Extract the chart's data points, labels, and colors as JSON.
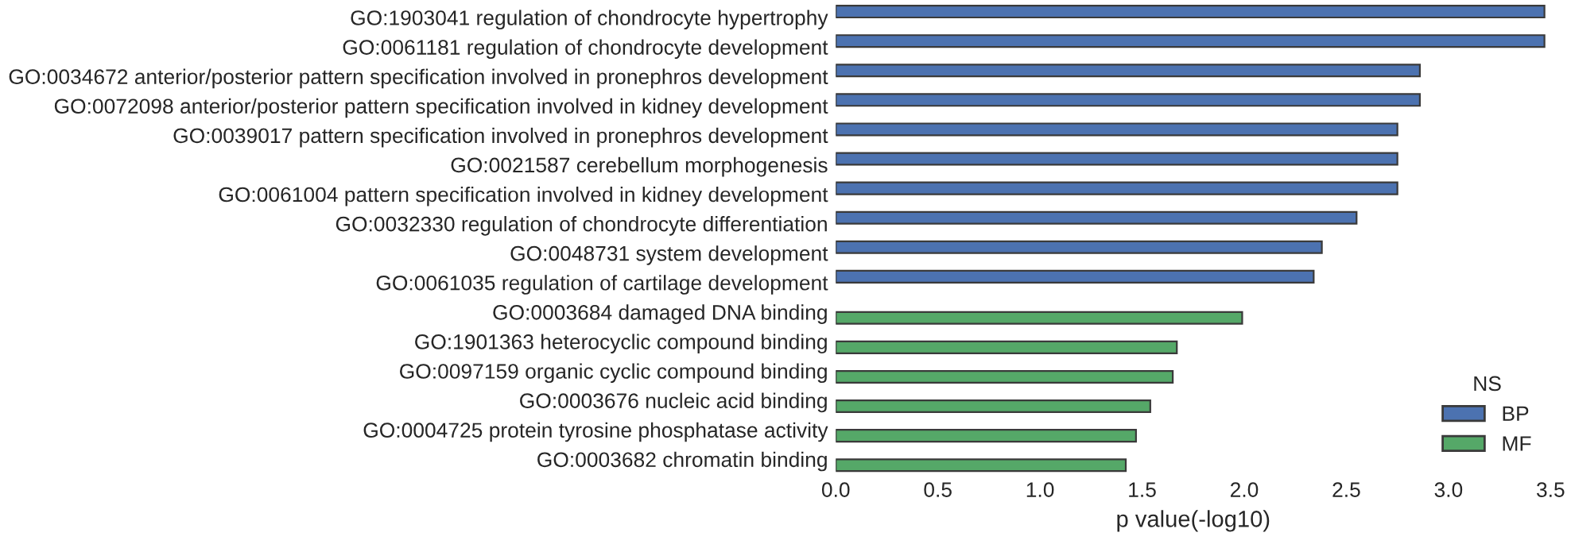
{
  "chart_data": {
    "type": "bar",
    "orientation": "horizontal",
    "xlabel": "p value(-log10)",
    "legend_title": "NS",
    "legend": "bottom right",
    "grid": false,
    "categories": [
      "GO:1903041 regulation of chondrocyte hypertrophy",
      "GO:0061181 regulation of chondrocyte development",
      "GO:0034672 anterior/posterior pattern specification involved in pronephros development",
      "GO:0072098 anterior/posterior pattern specification involved in kidney development",
      "GO:0039017 pattern specification involved in pronephros development",
      "GO:0021587 cerebellum morphogenesis",
      "GO:0061004 pattern specification involved in kidney development",
      "GO:0032330 regulation of chondrocyte differentiation",
      "GO:0048731 system development",
      "GO:0061035 regulation of cartilage development",
      "GO:0003684 damaged DNA binding",
      "GO:1901363 heterocyclic compound binding",
      "GO:0097159 organic cyclic compound binding",
      "GO:0003676 nucleic acid binding",
      "GO:0004725 protein tyrosine phosphatase activity",
      "GO:0003682 chromatin binding"
    ],
    "series": [
      {
        "name": "BP",
        "color": "#4c72b0",
        "values": [
          3.47,
          3.47,
          2.86,
          2.86,
          2.75,
          2.75,
          2.75,
          2.55,
          2.38,
          2.34,
          null,
          null,
          null,
          null,
          null,
          null
        ]
      },
      {
        "name": "MF",
        "color": "#55a868",
        "values": [
          null,
          null,
          null,
          null,
          null,
          null,
          null,
          null,
          null,
          null,
          1.99,
          1.67,
          1.65,
          1.54,
          1.47,
          1.42
        ]
      }
    ],
    "xlim": [
      0,
      3.5
    ],
    "xticks": [
      {
        "value": 0,
        "label": "0.0"
      },
      0.5,
      {
        "value": 1,
        "label": "1.0"
      },
      1.5,
      {
        "value": 2,
        "label": "2.0"
      },
      2.5,
      {
        "value": 3,
        "label": "3.0"
      },
      3.5
    ]
  }
}
